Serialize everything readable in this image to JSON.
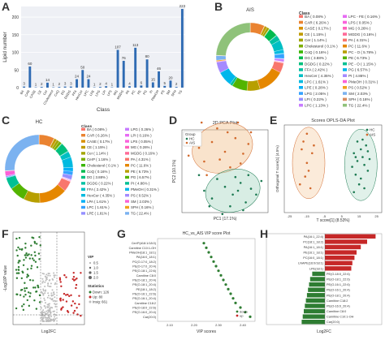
{
  "panel_letters": [
    "A",
    "B",
    "C",
    "D",
    "E",
    "F",
    "G",
    "H"
  ],
  "chart_data": [
    {
      "panel": "A",
      "type": "bar",
      "xlabel": "Class",
      "ylabel": "Lipid number",
      "yticks": [
        0,
        50,
        100,
        150,
        200
      ],
      "ylim": [
        0,
        230
      ],
      "color": "#2f6bb3",
      "categories": [
        "BA",
        "CAR",
        "CASE",
        "CE",
        "Cer",
        "Cholesterol",
        "CoQ",
        "DG",
        "DGDG",
        "FFA",
        "HexCer",
        "LPC",
        "LPE",
        "LPG",
        "LPI",
        "LPS",
        "MG",
        "MGDG",
        "PA",
        "PC",
        "PE",
        "PG",
        "PI",
        "PMeOH",
        "PS",
        "SM",
        "SPH",
        "TG"
      ],
      "values": [
        3,
        60,
        1,
        2,
        14,
        1,
        2,
        3,
        3,
        24,
        50,
        24,
        1,
        2,
        4,
        1,
        107,
        76,
        4,
        113,
        6,
        80,
        15,
        46,
        5,
        20,
        2,
        223
      ]
    },
    {
      "panel": "B",
      "type": "pie",
      "title": "AIS",
      "legend_title": "Class",
      "legend_left": [
        "BA ( 0.08% )",
        "CAR ( 6.26% )",
        "CASE ( 0.17% )",
        "CE ( 1.15% )",
        "Cer ( 1.14% )",
        "Cholesterol ( 0.1% )",
        "CoQ ( 0.16% )",
        "DG ( 3.88% )",
        "DGDG ( 0.22% )",
        "FFA ( 2.42% )",
        "HexCer ( 4.35% )",
        "LPC ( 1.61% )",
        "LPE ( 0.28% )",
        "LPG ( 2.05% )",
        "LPI ( 0.22% )",
        "LPC ( 1.13% )"
      ],
      "legend_right": [
        "LPC - FE ( 0.16% )",
        "LPS ( 0.05% )",
        "MG ( 0.26% )",
        "MGDG ( 0.16% )",
        "PA ( 4.31% )",
        "PC ( 11.6% )",
        "PC - O ( 5.78% )",
        "PE ( 6.73% )",
        "PE - O ( 1.15% )",
        "PG ( 6.57% )",
        "PI ( 4.86% )",
        "PMeOH ( 0.31% )",
        "PS ( 0.52% )",
        "SM ( 2.03% )",
        "SPH ( 0.16% )",
        "TG ( 22.4% )"
      ]
    },
    {
      "panel": "C",
      "type": "pie",
      "title": "HC",
      "legend_title": "Class",
      "legend_left": [
        "BA ( 0.08% )",
        "CAR ( 6.26% )",
        "CASE ( 0.17% )",
        "CE ( 1.15% )",
        "Cer ( 1.14% )",
        "CerP ( 1.16% )",
        "Cholesterol ( 0.1% )",
        "CoQ ( 0.16% )",
        "DG ( 3.88% )",
        "DGDG ( 0.22% )",
        "FFA ( 2.42% )",
        "HexCer ( 4.35% )",
        "LPA ( 1.61% )",
        "LPC ( 1.61% )",
        "LPE ( 1.81% )"
      ],
      "legend_right": [
        "LPG ( 0.26% )",
        "LPI ( 0.16% )",
        "LPS ( 0.05% )",
        "MG ( 0.26% )",
        "MGDG ( 0.16% )",
        "PA ( 4.31% )",
        "PC ( 11.6% )",
        "PE ( 6.73% )",
        "PG ( 6.57% )",
        "PI ( 4.86% )",
        "PMeOH ( 0.31% )",
        "PS ( 0.52% )",
        "SM ( 2.03% )",
        "SPH ( 0.16% )",
        "TG ( 22.4% )"
      ]
    },
    {
      "panel": "D",
      "type": "scatter",
      "title": "2D PCA Plot",
      "xlabel": "PC1 (17.1%)",
      "ylabel": "PC2 (10.1%)",
      "legend_title": "Group",
      "series": [
        {
          "name": "HC",
          "color": "#1c7a52",
          "points": [
            [
              -8,
              -10
            ],
            [
              -5,
              -14
            ],
            [
              0,
              -8
            ],
            [
              3,
              -12
            ],
            [
              6,
              -6
            ],
            [
              -3,
              -4
            ],
            [
              8,
              -16
            ],
            [
              10,
              -9
            ],
            [
              -10,
              -2
            ],
            [
              2,
              -18
            ],
            [
              12,
              -12
            ],
            [
              4,
              -3
            ],
            [
              -6,
              -18
            ],
            [
              7,
              -20
            ],
            [
              14,
              -5
            ],
            [
              -1,
              -22
            ],
            [
              9,
              -2
            ],
            [
              5,
              -10
            ]
          ]
        },
        {
          "name": "AIS",
          "color": "#d2692c",
          "points": [
            [
              -10,
              12
            ],
            [
              -5,
              15
            ],
            [
              0,
              10
            ],
            [
              4,
              17
            ],
            [
              -8,
              5
            ],
            [
              2,
              2
            ],
            [
              7,
              9
            ],
            [
              -12,
              18
            ],
            [
              -3,
              22
            ],
            [
              5,
              25
            ],
            [
              -7,
              -2
            ],
            [
              9,
              14
            ],
            [
              -14,
              8
            ],
            [
              1,
              20
            ],
            [
              -2,
              6
            ],
            [
              6,
              4
            ],
            [
              10,
              20
            ],
            [
              -9,
              25
            ]
          ]
        }
      ]
    },
    {
      "panel": "E",
      "type": "scatter",
      "title": "Scores OPLS-DA Plot",
      "xlabel": "T score[1] (8.53%)",
      "ylabel": "Orthogonal T score[1] (4.5%)",
      "xticks": [
        -25,
        -15,
        -5,
        5,
        15,
        25
      ],
      "series": [
        {
          "name": "HC",
          "color": "#1c7a52",
          "points": [
            [
              12,
              8
            ],
            [
              14,
              4
            ],
            [
              16,
              10
            ],
            [
              18,
              2
            ],
            [
              13,
              -3
            ],
            [
              17,
              6
            ],
            [
              20,
              -1
            ],
            [
              15,
              -8
            ],
            [
              19,
              12
            ],
            [
              11,
              1
            ],
            [
              16,
              -5
            ],
            [
              21,
              5
            ],
            [
              14,
              14
            ],
            [
              18,
              -10
            ],
            [
              12,
              -12
            ],
            [
              17,
              15
            ],
            [
              20,
              9
            ],
            [
              13,
              6
            ]
          ]
        },
        {
          "name": "AIS",
          "color": "#d2692c",
          "points": [
            [
              -18,
              10
            ],
            [
              -15,
              3
            ],
            [
              -12,
              8
            ],
            [
              -16,
              -4
            ],
            [
              -13,
              -10
            ],
            [
              -17,
              14
            ],
            [
              -14,
              -1
            ],
            [
              -11,
              12
            ],
            [
              -19,
              -8
            ],
            [
              -15,
              18
            ]
          ]
        }
      ]
    },
    {
      "panel": "F",
      "type": "scatter",
      "xlabel": "Log2FC",
      "ylabel": "-Log10P value",
      "legend_title": "VIP",
      "vip_legend": [
        "0.5",
        "1.0",
        "1.5",
        "2.0"
      ],
      "statistics_title": "Statistics",
      "statistics": [
        "Down: 126",
        "Up: 80",
        "Insig: 661"
      ],
      "series": [
        {
          "name": "Down",
          "color": "#2e7d32",
          "count": 126
        },
        {
          "name": "Up",
          "color": "#c62828",
          "count": 80
        },
        {
          "name": "Insig",
          "color": "#bdbdbd",
          "count": 661
        }
      ]
    },
    {
      "panel": "G",
      "type": "scatter",
      "title": "HC_vs_AIS VIP score Plot",
      "xlabel": "VIP scores",
      "xticks": [
        "2.10",
        "2.20",
        "2.30",
        "2.40"
      ],
      "xlim": [
        2.05,
        2.45
      ],
      "legend": [
        "down",
        "up"
      ],
      "categories": [
        "Car(20:0)",
        "PE(O-16:0_20:4)",
        "PE(O-18:0_22:6)",
        "Carnitine C18:2",
        "PE(O-16:1_20:4)",
        "PE(O-16:1_22:6)",
        "PE(18:1_18:2)",
        "PE(O-18:1_20:4)",
        "PE(O-18:1_20:4)",
        "Carnitine C8:0",
        "PE(O-18:1_22:6)",
        "PE(O-17:0_20:4)",
        "PC(O-17:0_18:2)",
        "PA(16:0_18:1)",
        "PMeOH(18:1_18:1)",
        "Carnitine C10:1-OH",
        "Cer/P(d18:1/18:0)"
      ],
      "values": [
        2.43,
        2.41,
        2.39,
        2.37,
        2.36,
        2.35,
        2.34,
        2.33,
        2.32,
        2.31,
        2.3,
        2.29,
        2.28,
        2.27,
        2.26,
        2.25,
        2.24
      ],
      "direction": [
        "down",
        "down",
        "down",
        "down",
        "down",
        "down",
        "down",
        "down",
        "down",
        "down",
        "down",
        "down",
        "down",
        "down",
        "down",
        "down",
        "down"
      ]
    },
    {
      "panel": "H",
      "type": "bar",
      "orientation": "horizontal",
      "xlabel": "Log2FC",
      "categories": [
        "PA(16:1_22:4)",
        "PC(18:1_18:2)",
        "PA(16:1_18:1)",
        "PE(16:1_18:1)",
        "PC(16:0_18:1)",
        "LNAPE(16:0/18:1)",
        "LPE(18:1)",
        "PE(O-18:0_22:6)",
        "PE(O-18:1_22:6)",
        "PE(O-16:1_22:6)",
        "PE(O-16:1_20:4)",
        "PE(O-18:1_20:4)",
        "Carnitine C18:2",
        "PE(O-16:0_20:4)",
        "Carnitine C8:0",
        "Carnitine C10:1-OH",
        "Car(20:0)"
      ],
      "values": [
        4.8,
        4.0,
        3.4,
        3.0,
        2.8,
        2.6,
        2.5,
        -1.2,
        -1.4,
        -1.5,
        -1.6,
        -1.7,
        -1.8,
        -1.9,
        -2.0,
        -2.1,
        -2.2
      ],
      "up_color": "#c62828",
      "down_color": "#2e7d32"
    }
  ]
}
